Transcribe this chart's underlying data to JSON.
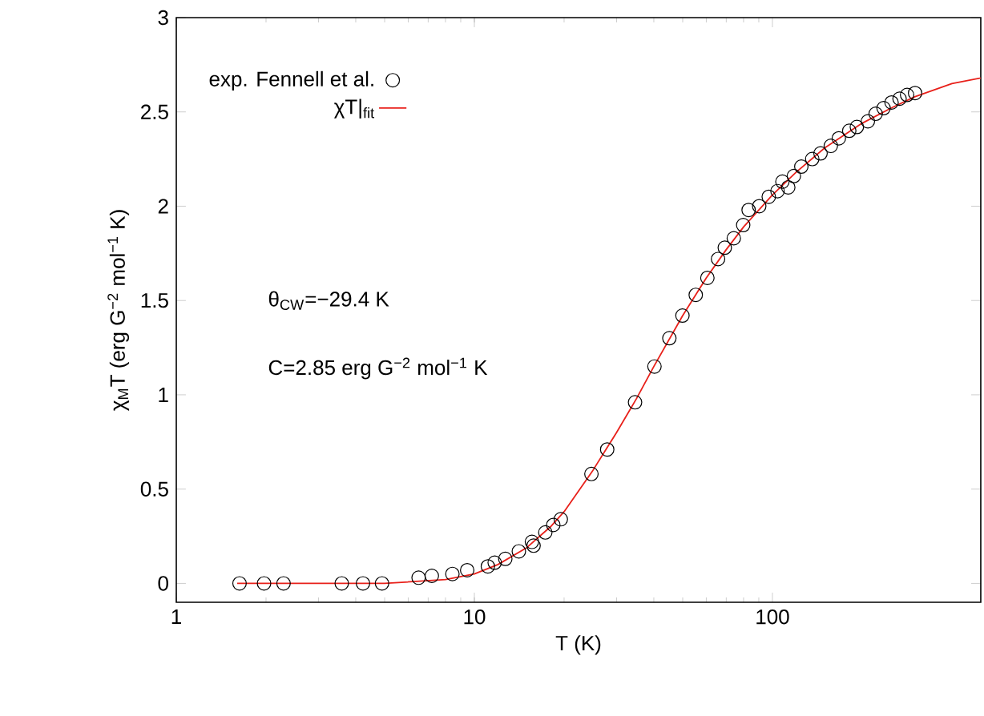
{
  "chart_data": {
    "type": "scatter",
    "xlabel": "T (K)",
    "ylabel": "χ$_{M}$T (erg G$^{−2}$ mol$^{−1}$ K)",
    "log": "x",
    "xlim": [
      1,
      500
    ],
    "ylim": [
      -0.1,
      3
    ],
    "xticks": [
      1,
      10,
      100
    ],
    "yticks": [
      0,
      0.5,
      1,
      1.5,
      2,
      2.5,
      3
    ],
    "legend": "top left",
    "annotations": [
      "θ$_{CW}$=−29.4 K",
      "C=2.85 erg G$^{−2}$ mol$^{−1}$ K"
    ],
    "series": [
      {
        "name": "exp. Fennell et al.",
        "marker": "circle",
        "color": "#000000",
        "x": [
          1.63,
          1.97,
          2.29,
          3.59,
          4.23,
          4.9,
          6.5,
          7.2,
          8.44,
          9.46,
          11.1,
          11.7,
          12.7,
          14.1,
          15.6,
          15.8,
          17.3,
          18.4,
          19.5,
          24.7,
          27.9,
          34.6,
          40.2,
          45.1,
          49.9,
          55.3,
          60.5,
          65.7,
          69.2,
          74.2,
          79.8,
          83.2,
          90.3,
          97.2,
          104,
          108,
          113,
          118,
          125,
          136,
          145,
          157,
          167,
          181,
          192,
          209,
          222,
          236,
          251,
          267,
          283,
          301
        ],
        "values": [
          0,
          0,
          0,
          0,
          0,
          0,
          0.03,
          0.04,
          0.05,
          0.07,
          0.09,
          0.11,
          0.13,
          0.17,
          0.22,
          0.2,
          0.27,
          0.31,
          0.34,
          0.58,
          0.71,
          0.96,
          1.15,
          1.3,
          1.42,
          1.53,
          1.62,
          1.72,
          1.78,
          1.83,
          1.9,
          1.98,
          2.0,
          2.05,
          2.08,
          2.13,
          2.1,
          2.16,
          2.21,
          2.25,
          2.28,
          2.32,
          2.36,
          2.4,
          2.42,
          2.45,
          2.49,
          2.52,
          2.55,
          2.57,
          2.59,
          2.6
        ]
      },
      {
        "name": "χT|$_{fit}$",
        "type": "line",
        "marker": "none",
        "color": "#e8201a",
        "x": [
          1.6,
          5,
          8,
          10,
          12,
          15,
          18,
          20,
          25,
          30,
          35,
          40,
          50,
          60,
          70,
          80,
          100,
          120,
          150,
          200,
          250,
          300,
          400,
          500
        ],
        "values": [
          0,
          0,
          0.02,
          0.05,
          0.1,
          0.19,
          0.3,
          0.38,
          0.6,
          0.8,
          0.98,
          1.15,
          1.42,
          1.62,
          1.77,
          1.89,
          2.06,
          2.18,
          2.31,
          2.44,
          2.52,
          2.58,
          2.65,
          2.68
        ]
      }
    ]
  }
}
